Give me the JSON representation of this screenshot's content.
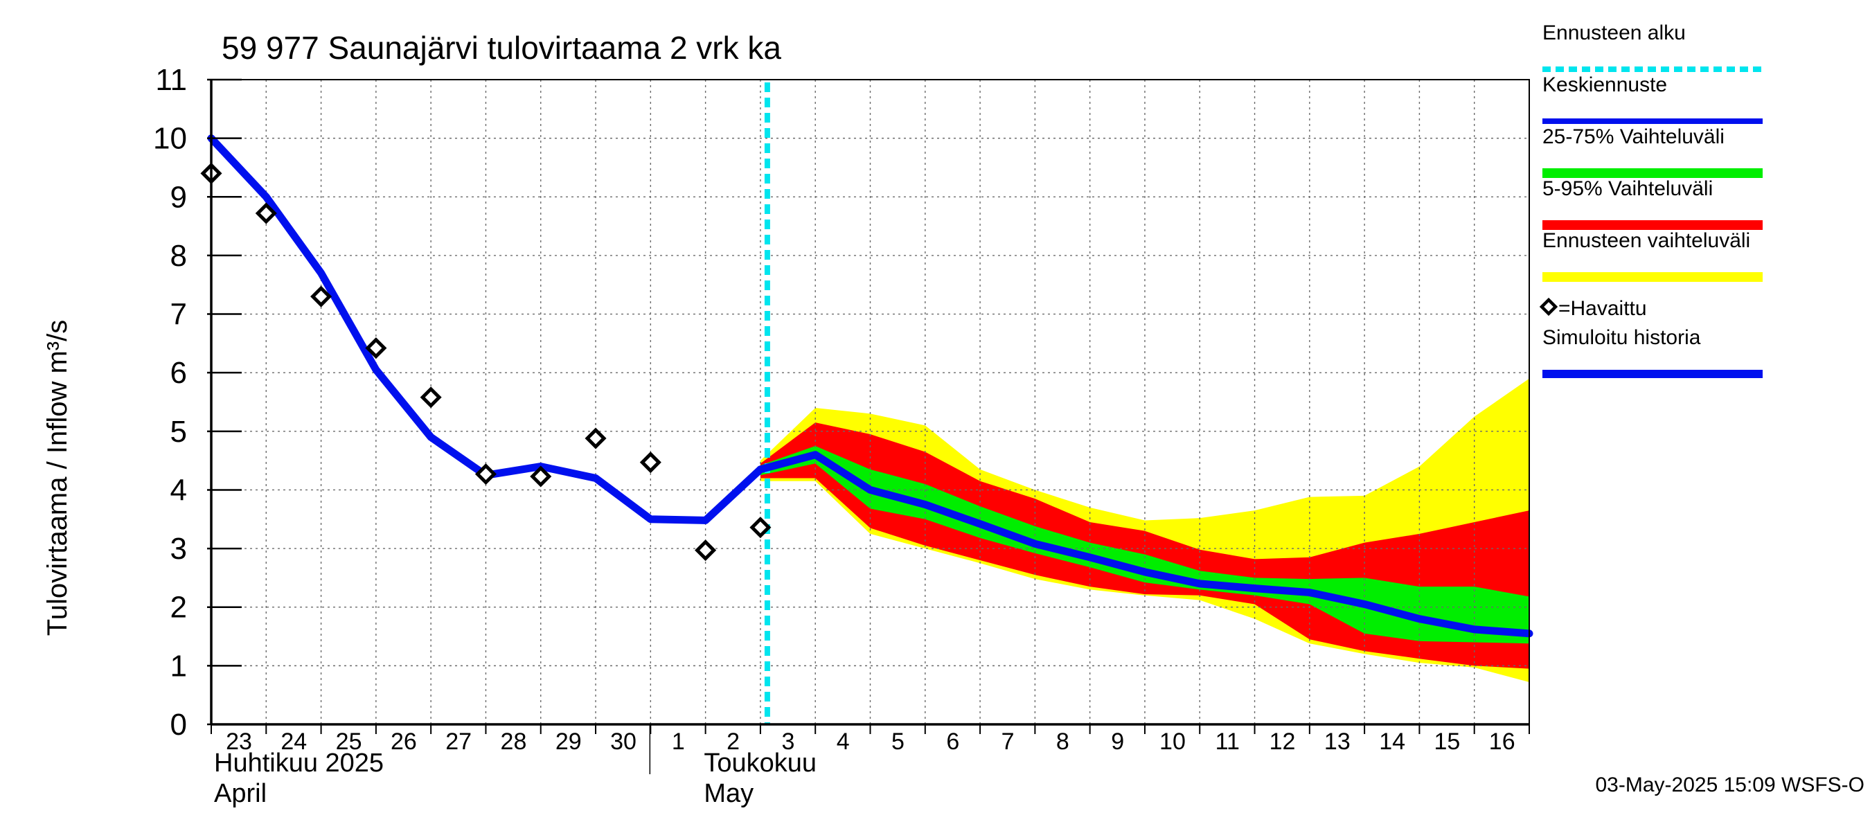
{
  "chart_data": {
    "type": "line",
    "title": "59 977 Saunajärvi tulovirtaama 2 vrk ka",
    "ylabel": "Tulovirtaama / Inflow    m³/s",
    "ylim": [
      0,
      11
    ],
    "yticks": [
      "0",
      "1",
      "2",
      "3",
      "4",
      "5",
      "6",
      "7",
      "8",
      "9",
      "10",
      "11"
    ],
    "xlim": [
      "2025-04-23",
      "2025-05-17"
    ],
    "xtick_labels": [
      "23",
      "24",
      "25",
      "26",
      "27",
      "28",
      "29",
      "30",
      "1",
      "2",
      "3",
      "4",
      "5",
      "6",
      "7",
      "8",
      "9",
      "10",
      "11",
      "12",
      "13",
      "14",
      "15",
      "16"
    ],
    "month_labels": [
      {
        "line1": "Huhtikuu  2025",
        "line2": "April"
      },
      {
        "line1": "Toukokuu",
        "line2": "May"
      }
    ],
    "forecast_start": "2025-05-03",
    "grid": true,
    "legend_placement": "right",
    "legend": [
      {
        "key": "forecast_start",
        "label": "Ennusteen alku",
        "color": "#00e5ee"
      },
      {
        "key": "median",
        "label": "Keskiennuste",
        "color": "#0010ee"
      },
      {
        "key": "band_25_75",
        "label": "25-75% Vaihteluväli",
        "color": "#00ee00"
      },
      {
        "key": "band_5_95",
        "label": "5-95% Vaihteluväli",
        "color": "#ff0000"
      },
      {
        "key": "band_full",
        "label": "Ennusteen vaihteluväli",
        "color": "#ffff00"
      },
      {
        "key": "observed",
        "label": "=Havaittu",
        "color": "#000000"
      },
      {
        "key": "simulated",
        "label": "Simuloitu historia",
        "color": "#0010ee"
      }
    ],
    "x": [
      "2025-04-23",
      "2025-04-24",
      "2025-04-25",
      "2025-04-26",
      "2025-04-27",
      "2025-04-28",
      "2025-04-29",
      "2025-04-30",
      "2025-05-01",
      "2025-05-02",
      "2025-05-03",
      "2025-05-04",
      "2025-05-05",
      "2025-05-06",
      "2025-05-07",
      "2025-05-08",
      "2025-05-09",
      "2025-05-10",
      "2025-05-11",
      "2025-05-12",
      "2025-05-13",
      "2025-05-14",
      "2025-05-15",
      "2025-05-16",
      "2025-05-17"
    ],
    "series": {
      "simulated": [
        10.0,
        9.0,
        7.7,
        6.05,
        4.9,
        4.25,
        4.4,
        4.2,
        3.5,
        3.48,
        4.35
      ],
      "observed": [
        9.4,
        8.72,
        7.3,
        6.42,
        5.58,
        4.27,
        4.23,
        4.88,
        4.47,
        2.97,
        3.36
      ],
      "median": [
        4.35,
        4.6,
        4.0,
        3.75,
        3.42,
        3.08,
        2.85,
        2.6,
        2.4,
        2.32,
        2.25,
        2.05,
        1.8,
        1.62,
        1.55
      ],
      "band_full_upper": [
        4.5,
        5.4,
        5.3,
        5.1,
        4.35,
        4.0,
        3.7,
        3.48,
        3.52,
        3.65,
        3.88,
        3.9,
        4.4,
        5.25,
        5.9
      ],
      "band_full_lower": [
        4.15,
        4.15,
        3.25,
        3.0,
        2.75,
        2.48,
        2.3,
        2.2,
        2.12,
        1.8,
        1.38,
        1.2,
        1.05,
        0.97,
        0.72
      ],
      "band_5_95_upper": [
        4.45,
        5.15,
        4.95,
        4.65,
        4.15,
        3.85,
        3.45,
        3.3,
        2.98,
        2.82,
        2.85,
        3.1,
        3.25,
        3.45,
        3.65
      ],
      "band_5_95_lower": [
        4.2,
        4.2,
        3.35,
        3.05,
        2.8,
        2.55,
        2.35,
        2.22,
        2.2,
        2.05,
        1.45,
        1.25,
        1.12,
        1.0,
        0.95
      ],
      "band_25_75_upper": [
        4.42,
        4.75,
        4.35,
        4.1,
        3.72,
        3.38,
        3.1,
        2.9,
        2.62,
        2.5,
        2.48,
        2.5,
        2.35,
        2.35,
        2.18
      ],
      "band_25_75_lower": [
        4.25,
        4.45,
        3.68,
        3.5,
        3.18,
        2.92,
        2.68,
        2.42,
        2.3,
        2.2,
        2.05,
        1.55,
        1.42,
        1.4,
        1.38
      ]
    }
  },
  "timestamp": "03-May-2025 15:09 WSFS-O"
}
